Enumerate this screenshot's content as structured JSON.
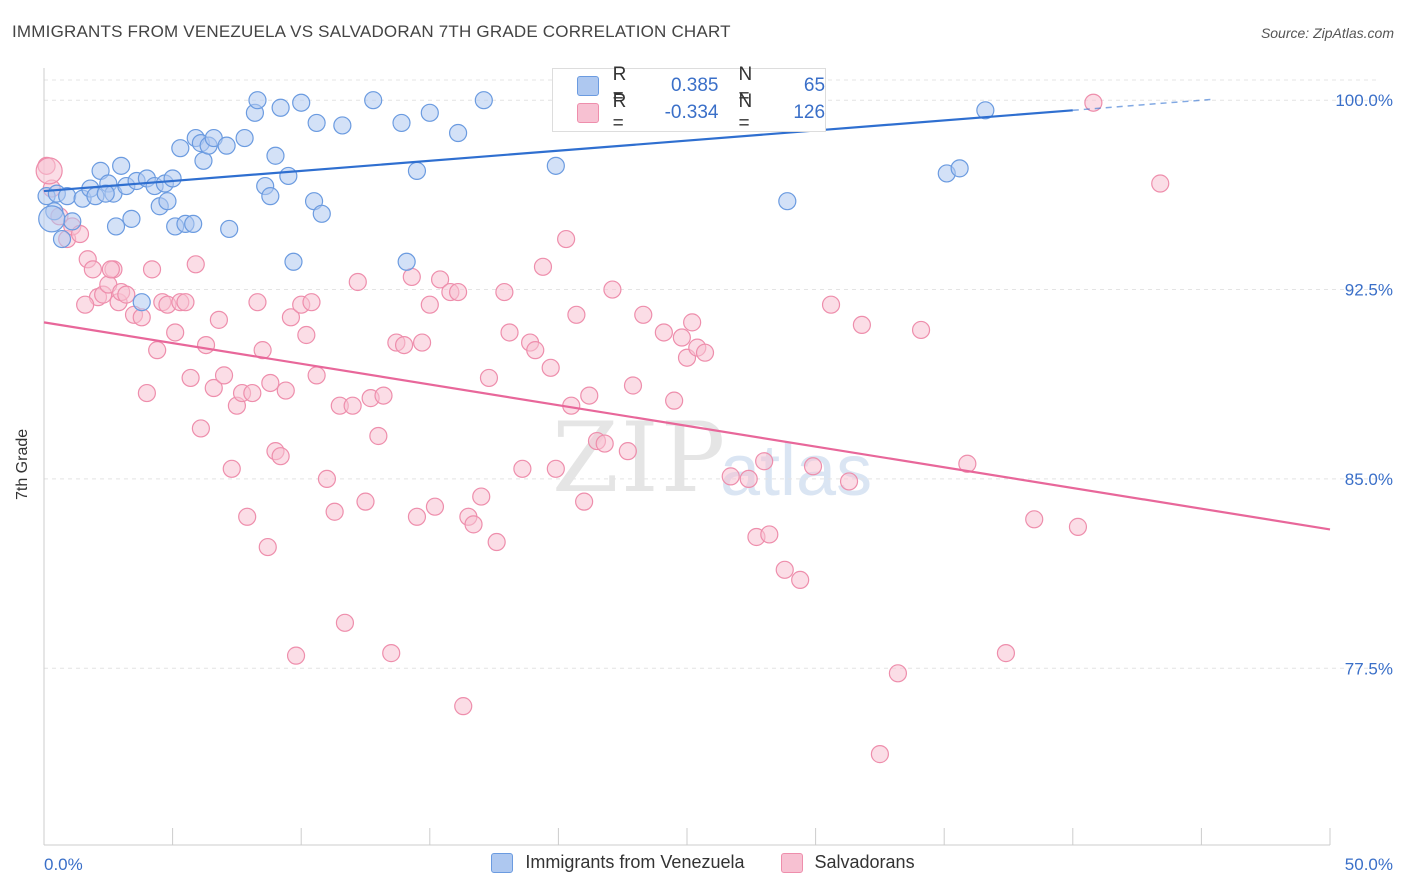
{
  "header": {
    "title": "IMMIGRANTS FROM VENEZUELA VS SALVADORAN 7TH GRADE CORRELATION CHART",
    "source": "Source: ZipAtlas.com"
  },
  "watermark": {
    "zip": "ZIP",
    "atlas": "atlas"
  },
  "legend": {
    "rows": [
      {
        "r_label": "R =",
        "r_value": "0.385",
        "n_label": "N =",
        "n_value": "65"
      },
      {
        "r_label": "R =",
        "r_value": "-0.334",
        "n_label": "N =",
        "n_value": "126"
      }
    ]
  },
  "colors": {
    "blue_fill": "#aec8f0",
    "blue_stroke": "#6b9be0",
    "blue_line": "#2f6fd0",
    "pink_fill": "#f7c1d2",
    "pink_stroke": "#ee8eac",
    "pink_line": "#e8679a",
    "tick_label": "#3a6fc8"
  },
  "chart_data": {
    "type": "scatter",
    "title": "IMMIGRANTS FROM VENEZUELA VS SALVADORAN 7TH GRADE CORRELATION CHART",
    "xlabel": "",
    "ylabel": "7th Grade",
    "xlim": [
      0,
      50
    ],
    "ylim": [
      70.5,
      100.8
    ],
    "x_tick_labels": [
      "0.0%",
      "50.0%"
    ],
    "y_ticks": [
      77.5,
      85.0,
      92.5,
      100.0
    ],
    "y_tick_labels": [
      "77.5%",
      "85.0%",
      "92.5%",
      "100.0%"
    ],
    "grid": "horizontal dashed",
    "legend_position": "top-center",
    "series": [
      {
        "name": "Immigrants from Venezuela",
        "r": 0.385,
        "n": 65,
        "trend": {
          "x": [
            0,
            40
          ],
          "y": [
            96.4,
            99.6
          ],
          "dashed_to_x": 45.5
        },
        "points": [
          [
            0.1,
            96.2
          ],
          [
            0.4,
            95.6
          ],
          [
            0.5,
            96.3
          ],
          [
            0.7,
            94.5
          ],
          [
            0.9,
            96.2
          ],
          [
            1.1,
            95.2
          ],
          [
            1.5,
            96.1
          ],
          [
            1.8,
            96.5
          ],
          [
            2.0,
            96.2
          ],
          [
            2.2,
            97.2
          ],
          [
            2.5,
            96.7
          ],
          [
            2.7,
            96.3
          ],
          [
            2.8,
            95.0
          ],
          [
            3.0,
            97.4
          ],
          [
            3.2,
            96.6
          ],
          [
            3.4,
            95.3
          ],
          [
            3.6,
            96.8
          ],
          [
            3.8,
            92.0
          ],
          [
            4.0,
            96.9
          ],
          [
            4.3,
            96.6
          ],
          [
            4.5,
            95.8
          ],
          [
            4.7,
            96.7
          ],
          [
            4.8,
            96.0
          ],
          [
            5.0,
            96.9
          ],
          [
            5.1,
            95.0
          ],
          [
            5.3,
            98.1
          ],
          [
            5.5,
            95.1
          ],
          [
            5.8,
            95.1
          ],
          [
            5.9,
            98.5
          ],
          [
            6.1,
            98.3
          ],
          [
            6.2,
            97.6
          ],
          [
            6.4,
            98.2
          ],
          [
            6.6,
            98.5
          ],
          [
            7.1,
            98.2
          ],
          [
            7.2,
            94.9
          ],
          [
            7.8,
            98.5
          ],
          [
            8.2,
            99.5
          ],
          [
            8.3,
            100.0
          ],
          [
            8.6,
            96.6
          ],
          [
            8.8,
            96.2
          ],
          [
            9.0,
            97.8
          ],
          [
            9.2,
            99.7
          ],
          [
            9.5,
            97.0
          ],
          [
            9.7,
            93.6
          ],
          [
            10.0,
            99.9
          ],
          [
            10.5,
            96.0
          ],
          [
            10.6,
            99.1
          ],
          [
            10.8,
            95.5
          ],
          [
            11.6,
            99.0
          ],
          [
            12.8,
            100.0
          ],
          [
            13.9,
            99.1
          ],
          [
            14.1,
            93.6
          ],
          [
            14.5,
            97.2
          ],
          [
            15.0,
            99.5
          ],
          [
            16.1,
            98.7
          ],
          [
            17.1,
            100.0
          ],
          [
            19.9,
            97.4
          ],
          [
            20.2,
            99.9
          ],
          [
            20.5,
            100.0
          ],
          [
            28.9,
            96.0
          ],
          [
            35.1,
            97.1
          ],
          [
            35.6,
            97.3
          ],
          [
            36.6,
            99.6
          ],
          [
            2.4,
            96.3
          ],
          [
            0.3,
            95.3
          ]
        ]
      },
      {
        "name": "Salvadorans",
        "r": -0.334,
        "n": 126,
        "trend": {
          "x": [
            0,
            50
          ],
          "y": [
            91.2,
            83.0
          ]
        },
        "points": [
          [
            0.1,
            97.4
          ],
          [
            0.3,
            96.5
          ],
          [
            0.6,
            95.4
          ],
          [
            0.9,
            94.5
          ],
          [
            1.1,
            95.0
          ],
          [
            1.4,
            94.7
          ],
          [
            1.7,
            93.7
          ],
          [
            1.9,
            93.3
          ],
          [
            2.1,
            92.2
          ],
          [
            2.3,
            92.3
          ],
          [
            2.5,
            92.7
          ],
          [
            2.7,
            93.3
          ],
          [
            2.9,
            92.0
          ],
          [
            3.0,
            92.4
          ],
          [
            3.2,
            92.3
          ],
          [
            3.5,
            91.5
          ],
          [
            3.8,
            91.4
          ],
          [
            4.0,
            88.4
          ],
          [
            4.2,
            93.3
          ],
          [
            4.4,
            90.1
          ],
          [
            4.6,
            92.0
          ],
          [
            4.8,
            91.9
          ],
          [
            5.1,
            90.8
          ],
          [
            5.3,
            92.0
          ],
          [
            5.5,
            92.0
          ],
          [
            5.7,
            89.0
          ],
          [
            5.9,
            93.5
          ],
          [
            6.1,
            87.0
          ],
          [
            6.3,
            90.3
          ],
          [
            6.6,
            88.6
          ],
          [
            6.8,
            91.3
          ],
          [
            7.0,
            89.1
          ],
          [
            7.3,
            85.4
          ],
          [
            7.5,
            87.9
          ],
          [
            7.7,
            88.4
          ],
          [
            7.9,
            83.5
          ],
          [
            8.1,
            88.4
          ],
          [
            8.3,
            92.0
          ],
          [
            8.5,
            90.1
          ],
          [
            8.7,
            82.3
          ],
          [
            8.8,
            88.8
          ],
          [
            9.0,
            86.1
          ],
          [
            9.2,
            85.9
          ],
          [
            9.4,
            88.5
          ],
          [
            9.6,
            91.4
          ],
          [
            9.8,
            78.0
          ],
          [
            10.0,
            91.9
          ],
          [
            10.2,
            90.7
          ],
          [
            10.4,
            92.0
          ],
          [
            10.6,
            89.1
          ],
          [
            11.0,
            85.0
          ],
          [
            11.3,
            83.7
          ],
          [
            11.5,
            87.9
          ],
          [
            11.7,
            79.3
          ],
          [
            12.0,
            87.9
          ],
          [
            12.2,
            92.8
          ],
          [
            12.5,
            84.1
          ],
          [
            12.7,
            88.2
          ],
          [
            13.0,
            86.7
          ],
          [
            13.2,
            88.3
          ],
          [
            13.5,
            78.1
          ],
          [
            13.7,
            90.4
          ],
          [
            14.0,
            90.3
          ],
          [
            14.3,
            93.0
          ],
          [
            14.5,
            83.5
          ],
          [
            14.7,
            90.4
          ],
          [
            15.0,
            91.9
          ],
          [
            15.2,
            83.9
          ],
          [
            15.4,
            92.9
          ],
          [
            15.8,
            92.4
          ],
          [
            16.1,
            92.4
          ],
          [
            16.3,
            76.0
          ],
          [
            16.5,
            83.5
          ],
          [
            16.7,
            83.2
          ],
          [
            17.0,
            84.3
          ],
          [
            17.3,
            89.0
          ],
          [
            17.6,
            82.5
          ],
          [
            17.9,
            92.4
          ],
          [
            18.1,
            90.8
          ],
          [
            18.6,
            85.4
          ],
          [
            18.9,
            90.4
          ],
          [
            19.1,
            90.1
          ],
          [
            19.4,
            93.4
          ],
          [
            19.7,
            89.4
          ],
          [
            19.9,
            85.4
          ],
          [
            20.3,
            94.5
          ],
          [
            20.5,
            87.9
          ],
          [
            20.7,
            91.5
          ],
          [
            21.0,
            84.1
          ],
          [
            21.2,
            88.3
          ],
          [
            21.5,
            86.5
          ],
          [
            21.8,
            86.4
          ],
          [
            22.1,
            92.5
          ],
          [
            22.7,
            86.1
          ],
          [
            22.9,
            88.7
          ],
          [
            23.3,
            91.5
          ],
          [
            24.1,
            90.8
          ],
          [
            24.5,
            88.1
          ],
          [
            24.8,
            90.6
          ],
          [
            25.0,
            89.8
          ],
          [
            25.2,
            91.2
          ],
          [
            25.4,
            90.2
          ],
          [
            25.7,
            90.0
          ],
          [
            26.7,
            85.1
          ],
          [
            27.4,
            85.0
          ],
          [
            27.7,
            82.7
          ],
          [
            28.0,
            85.7
          ],
          [
            28.2,
            82.8
          ],
          [
            28.8,
            81.4
          ],
          [
            29.4,
            81.0
          ],
          [
            29.9,
            85.5
          ],
          [
            30.6,
            91.9
          ],
          [
            31.3,
            84.9
          ],
          [
            31.8,
            91.1
          ],
          [
            32.5,
            74.1
          ],
          [
            33.2,
            77.3
          ],
          [
            34.1,
            90.9
          ],
          [
            35.9,
            85.6
          ],
          [
            37.4,
            78.1
          ],
          [
            38.5,
            83.4
          ],
          [
            40.2,
            83.1
          ],
          [
            40.8,
            99.9
          ],
          [
            43.4,
            96.7
          ],
          [
            1.6,
            91.9
          ],
          [
            2.6,
            93.3
          ],
          [
            0.2,
            97.2
          ]
        ]
      }
    ]
  }
}
